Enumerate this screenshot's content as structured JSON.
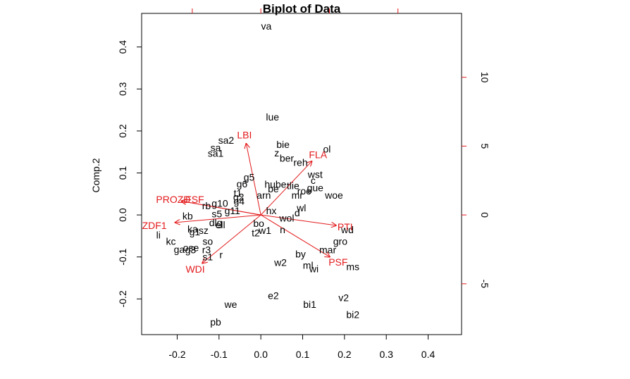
{
  "chart_data": {
    "type": "scatter",
    "subtype": "biplot",
    "title": "Biplot of Data",
    "xlabel": "",
    "ylabel": "Comp.2",
    "xlim": [
      -0.285,
      0.48
    ],
    "ylim": [
      -0.285,
      0.48
    ],
    "x_ticks": [
      -0.2,
      -0.1,
      0.0,
      0.1,
      0.2,
      0.3,
      0.4
    ],
    "x_tick_labels": [
      "-0.2",
      "-0.1",
      "0.0",
      "0.1",
      "0.2",
      "0.3",
      "0.4"
    ],
    "y_ticks": [
      -0.2,
      -0.1,
      0.0,
      0.1,
      0.2,
      0.3,
      0.4
    ],
    "y_tick_labels": [
      "-0.2",
      "-0.1",
      "0.0",
      "0.1",
      "0.2",
      "0.3",
      "0.4"
    ],
    "secondary_scale": 30.5,
    "right_ticks": [
      -5,
      0,
      5,
      10
    ],
    "right_tick_labels": [
      "-5",
      "0",
      "5",
      "10"
    ],
    "top_ticks": [
      -5,
      0,
      5,
      10
    ],
    "top_tick_labels": [
      "",
      "",
      "",
      ""
    ],
    "colors": {
      "points": "#000000",
      "variables": "#e31a1c",
      "frame": "#000000"
    },
    "points": [
      {
        "label": "va",
        "x": 0.013,
        "y": 0.45
      },
      {
        "label": "lue",
        "x": 0.028,
        "y": 0.233
      },
      {
        "label": "sa2",
        "x": -0.083,
        "y": 0.178
      },
      {
        "label": "sa",
        "x": -0.108,
        "y": 0.16
      },
      {
        "label": "sa1",
        "x": -0.108,
        "y": 0.147
      },
      {
        "label": "bie",
        "x": 0.053,
        "y": 0.168
      },
      {
        "label": "z",
        "x": 0.038,
        "y": 0.148
      },
      {
        "label": "ber",
        "x": 0.062,
        "y": 0.135
      },
      {
        "label": "reh",
        "x": 0.095,
        "y": 0.125
      },
      {
        "label": "ol",
        "x": 0.158,
        "y": 0.157
      },
      {
        "label": "wst",
        "x": 0.13,
        "y": 0.097
      },
      {
        "label": "c",
        "x": 0.125,
        "y": 0.082
      },
      {
        "label": "g5",
        "x": -0.028,
        "y": 0.09
      },
      {
        "label": "g6",
        "x": -0.045,
        "y": 0.074
      },
      {
        "label": "hube",
        "x": 0.035,
        "y": 0.073
      },
      {
        "label": "tlie",
        "x": 0.077,
        "y": 0.07
      },
      {
        "label": "gue",
        "x": 0.13,
        "y": 0.065
      },
      {
        "label": "roe",
        "x": 0.104,
        "y": 0.057
      },
      {
        "label": "be",
        "x": 0.03,
        "y": 0.062
      },
      {
        "label": "t1",
        "x": -0.055,
        "y": 0.052
      },
      {
        "label": "g2",
        "x": -0.053,
        "y": 0.043
      },
      {
        "label": "g4",
        "x": -0.052,
        "y": 0.033
      },
      {
        "label": "arn",
        "x": 0.007,
        "y": 0.047
      },
      {
        "label": "mr",
        "x": 0.087,
        "y": 0.047
      },
      {
        "label": "woe",
        "x": 0.175,
        "y": 0.047
      },
      {
        "label": "g10",
        "x": -0.098,
        "y": 0.028
      },
      {
        "label": "rb",
        "x": -0.13,
        "y": 0.022
      },
      {
        "label": "wl",
        "x": 0.097,
        "y": 0.017
      },
      {
        "label": "hx",
        "x": 0.025,
        "y": 0.01
      },
      {
        "label": "g11",
        "x": -0.068,
        "y": 0.01
      },
      {
        "label": "s5",
        "x": -0.105,
        "y": 0.003
      },
      {
        "label": "d",
        "x": 0.087,
        "y": 0.005
      },
      {
        "label": "kb",
        "x": -0.175,
        "y": -0.002
      },
      {
        "label": "wol",
        "x": 0.062,
        "y": -0.007
      },
      {
        "label": "dlg",
        "x": -0.108,
        "y": -0.018
      },
      {
        "label": "ell",
        "x": -0.097,
        "y": -0.023
      },
      {
        "label": "bo",
        "x": -0.005,
        "y": -0.02
      },
      {
        "label": "ka",
        "x": -0.163,
        "y": -0.033
      },
      {
        "label": "g1",
        "x": -0.158,
        "y": -0.04
      },
      {
        "label": "sz",
        "x": -0.137,
        "y": -0.037
      },
      {
        "label": "w1",
        "x": 0.01,
        "y": -0.037
      },
      {
        "label": "t2",
        "x": -0.012,
        "y": -0.043
      },
      {
        "label": "n",
        "x": 0.052,
        "y": -0.035
      },
      {
        "label": "wd",
        "x": 0.207,
        "y": -0.035
      },
      {
        "label": "li",
        "x": -0.245,
        "y": -0.048
      },
      {
        "label": "kc",
        "x": -0.215,
        "y": -0.063
      },
      {
        "label": "so",
        "x": -0.127,
        "y": -0.063
      },
      {
        "label": "gro",
        "x": 0.19,
        "y": -0.063
      },
      {
        "label": "ga",
        "x": -0.195,
        "y": -0.082
      },
      {
        "label": "ose",
        "x": -0.167,
        "y": -0.078
      },
      {
        "label": "g3",
        "x": -0.168,
        "y": -0.083
      },
      {
        "label": "r3",
        "x": -0.13,
        "y": -0.083
      },
      {
        "label": "s1",
        "x": -0.127,
        "y": -0.1
      },
      {
        "label": "r",
        "x": -0.095,
        "y": -0.095
      },
      {
        "label": "mar",
        "x": 0.16,
        "y": -0.083
      },
      {
        "label": "by",
        "x": 0.095,
        "y": -0.093
      },
      {
        "label": "w2",
        "x": 0.047,
        "y": -0.113
      },
      {
        "label": "ml",
        "x": 0.113,
        "y": -0.12
      },
      {
        "label": "wi",
        "x": 0.127,
        "y": -0.128
      },
      {
        "label": "ms",
        "x": 0.22,
        "y": -0.123
      },
      {
        "label": "e2",
        "x": 0.03,
        "y": -0.192
      },
      {
        "label": "v2",
        "x": 0.198,
        "y": -0.197
      },
      {
        "label": "we",
        "x": -0.072,
        "y": -0.213
      },
      {
        "label": "bi1",
        "x": 0.117,
        "y": -0.213
      },
      {
        "label": "bi2",
        "x": 0.22,
        "y": -0.237
      },
      {
        "label": "pb",
        "x": -0.108,
        "y": -0.255
      }
    ],
    "variables": [
      {
        "label": "LBI",
        "x": -0.035,
        "y": 0.17
      },
      {
        "label": "FLA",
        "x": 0.122,
        "y": 0.128
      },
      {
        "label": "PROZD",
        "x": -0.19,
        "y": 0.033
      },
      {
        "label": "FSF",
        "x": -0.19,
        "y": 0.033
      },
      {
        "label": "ZDF1",
        "x": -0.205,
        "y": -0.018
      },
      {
        "label": "PTI",
        "x": 0.18,
        "y": -0.025
      },
      {
        "label": "PSF",
        "x": 0.165,
        "y": -0.1
      },
      {
        "label": "WDI",
        "x": -0.14,
        "y": -0.115
      }
    ]
  }
}
